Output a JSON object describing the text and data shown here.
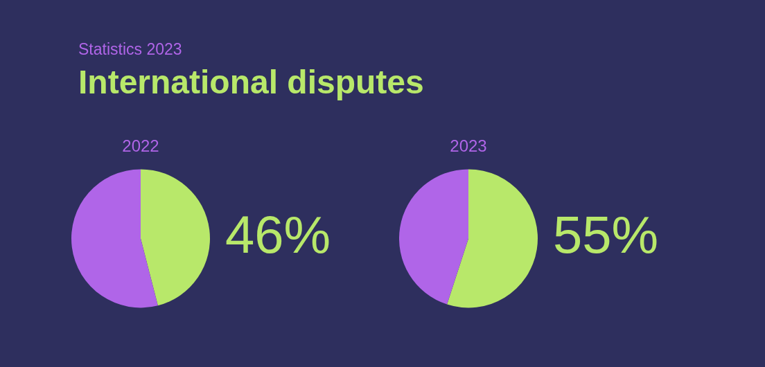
{
  "chart_data": [
    {
      "type": "other",
      "title": "International disputes",
      "subtitle": "Statistics 2023"
    },
    {
      "type": "pie",
      "title": "2022",
      "categories": [
        null,
        null
      ],
      "values": [
        46,
        54
      ],
      "colors": [
        "#b8e86a",
        "#b065e8"
      ],
      "value_labels": [
        "46%",
        null
      ]
    },
    {
      "type": "pie",
      "title": "2023",
      "categories": [
        null,
        null
      ],
      "values": [
        55,
        45
      ],
      "colors": [
        "#b8e86a",
        "#b065e8"
      ],
      "value_labels": [
        "55%",
        null
      ]
    }
  ]
}
